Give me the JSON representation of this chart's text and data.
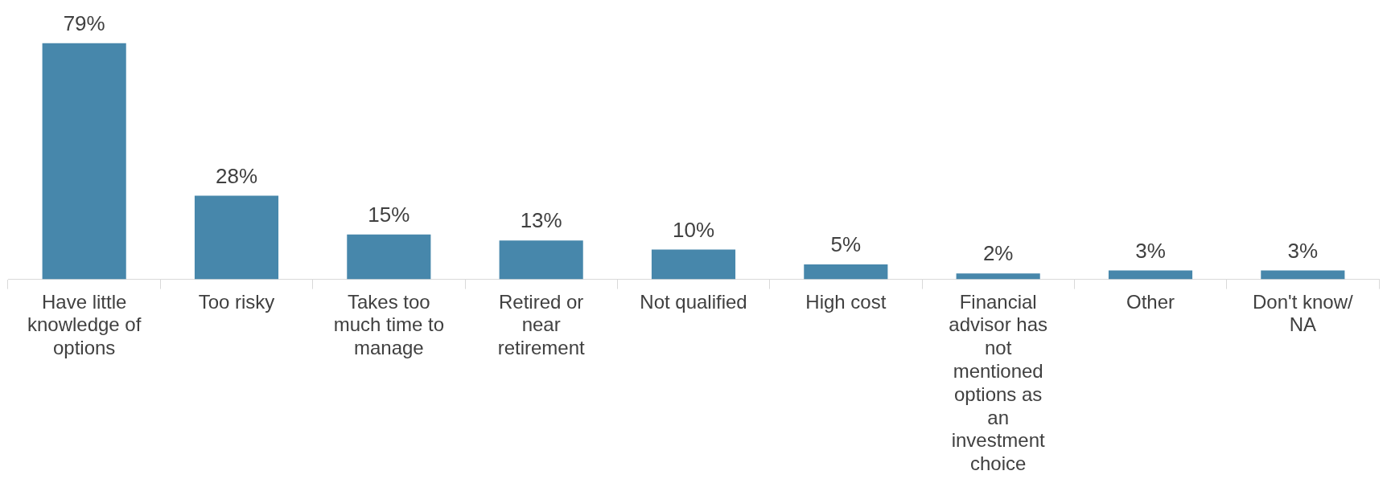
{
  "chart_data": {
    "type": "bar",
    "categories": [
      "Have little knowledge of options",
      "Too risky",
      "Takes too much time to manage",
      "Retired or near retirement",
      "Not qualified",
      "High cost",
      "Financial advisor has not mentioned options as an investment choice",
      "Other",
      "Don't know/ NA"
    ],
    "values": [
      79,
      28,
      15,
      13,
      10,
      5,
      2,
      3,
      3
    ],
    "value_labels": [
      "79%",
      "28%",
      "15%",
      "13%",
      "10%",
      "5%",
      "2%",
      "3%",
      "3%"
    ],
    "color": "#4787ab",
    "grid": false,
    "legend": false
  }
}
